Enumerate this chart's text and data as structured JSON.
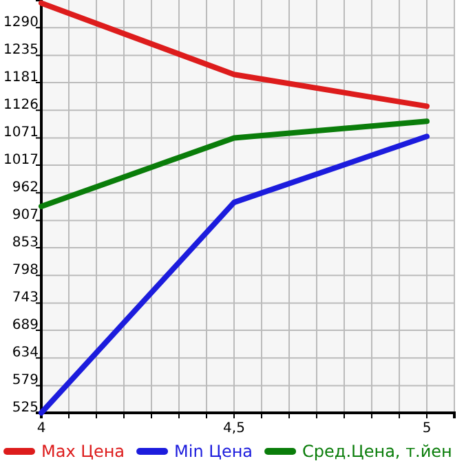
{
  "chart_data": {
    "type": "line",
    "x": [
      4,
      4.5,
      5
    ],
    "xlim": [
      4,
      5.0714
    ],
    "xticks": [
      4,
      {
        "value": 4.0714,
        "label": null
      },
      {
        "value": 4.1429,
        "label": null
      },
      {
        "value": 4.2143,
        "label": null
      },
      {
        "value": 4.2857,
        "label": null
      },
      {
        "value": 4.3571,
        "label": null
      },
      {
        "value": 4.4286,
        "label": null
      },
      {
        "value": 4.5,
        "label": "4,5"
      },
      {
        "value": 4.5714,
        "label": null
      },
      {
        "value": 4.6429,
        "label": null
      },
      {
        "value": 4.7143,
        "label": null
      },
      {
        "value": 4.7857,
        "label": null
      },
      {
        "value": 4.8571,
        "label": null
      },
      {
        "value": 4.9286,
        "label": null
      },
      5,
      {
        "value": 5.0714,
        "label": null
      }
    ],
    "ylim": [
      525,
      1345
    ],
    "yticks": [
      525,
      579,
      634,
      689,
      743,
      798,
      853,
      907,
      962,
      1017,
      1071,
      1126,
      1181,
      1235,
      1290
    ],
    "grid": true,
    "legend": "bottom",
    "marker": "none",
    "line_style": "solid",
    "series": [
      {
        "name": "Max Цена",
        "color": "#dd1c1c",
        "values": [
          1339,
          1197,
          1134
        ]
      },
      {
        "name": "Min Цена",
        "color": "#1c1cdd",
        "values": [
          525,
          943,
          1074
        ]
      },
      {
        "name": "Сред.Цена, т.йен",
        "color": "#0a7d0a",
        "values": [
          935,
          1071,
          1104
        ]
      }
    ]
  }
}
